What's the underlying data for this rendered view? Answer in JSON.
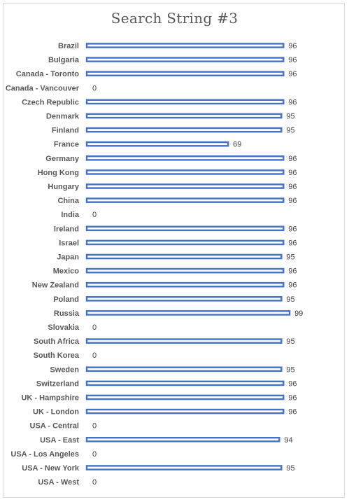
{
  "chart_data": {
    "type": "bar",
    "orientation": "horizontal",
    "title": "Search String #3",
    "xlabel": "",
    "ylabel": "",
    "xlim": [
      0,
      100
    ],
    "grid": false,
    "legend": "none",
    "bar_color": "#4472c4",
    "bar_fill": "#ffffff",
    "categories": [
      "Brazil",
      "Bulgaria",
      "Canada - Toronto",
      "Canada - Vancouver",
      "Czech Republic",
      "Denmark",
      "Finland",
      "France",
      "Germany",
      "Hong Kong",
      "Hungary",
      "China",
      "India",
      "Ireland",
      "Israel",
      "Japan",
      "Mexico",
      "New Zealand",
      "Poland",
      "Russia",
      "Slovakia",
      "South Africa",
      "South Korea",
      "Sweden",
      "Switzerland",
      "UK - Hampshire",
      "UK - London",
      "USA - Central",
      "USA - East",
      "USA - Los Angeles",
      "USA - New York",
      "USA - West"
    ],
    "values": [
      96,
      96,
      96,
      0,
      96,
      95,
      95,
      69,
      96,
      96,
      96,
      96,
      0,
      96,
      96,
      95,
      96,
      96,
      95,
      99,
      0,
      95,
      0,
      95,
      96,
      96,
      96,
      0,
      94,
      0,
      95,
      0
    ]
  }
}
